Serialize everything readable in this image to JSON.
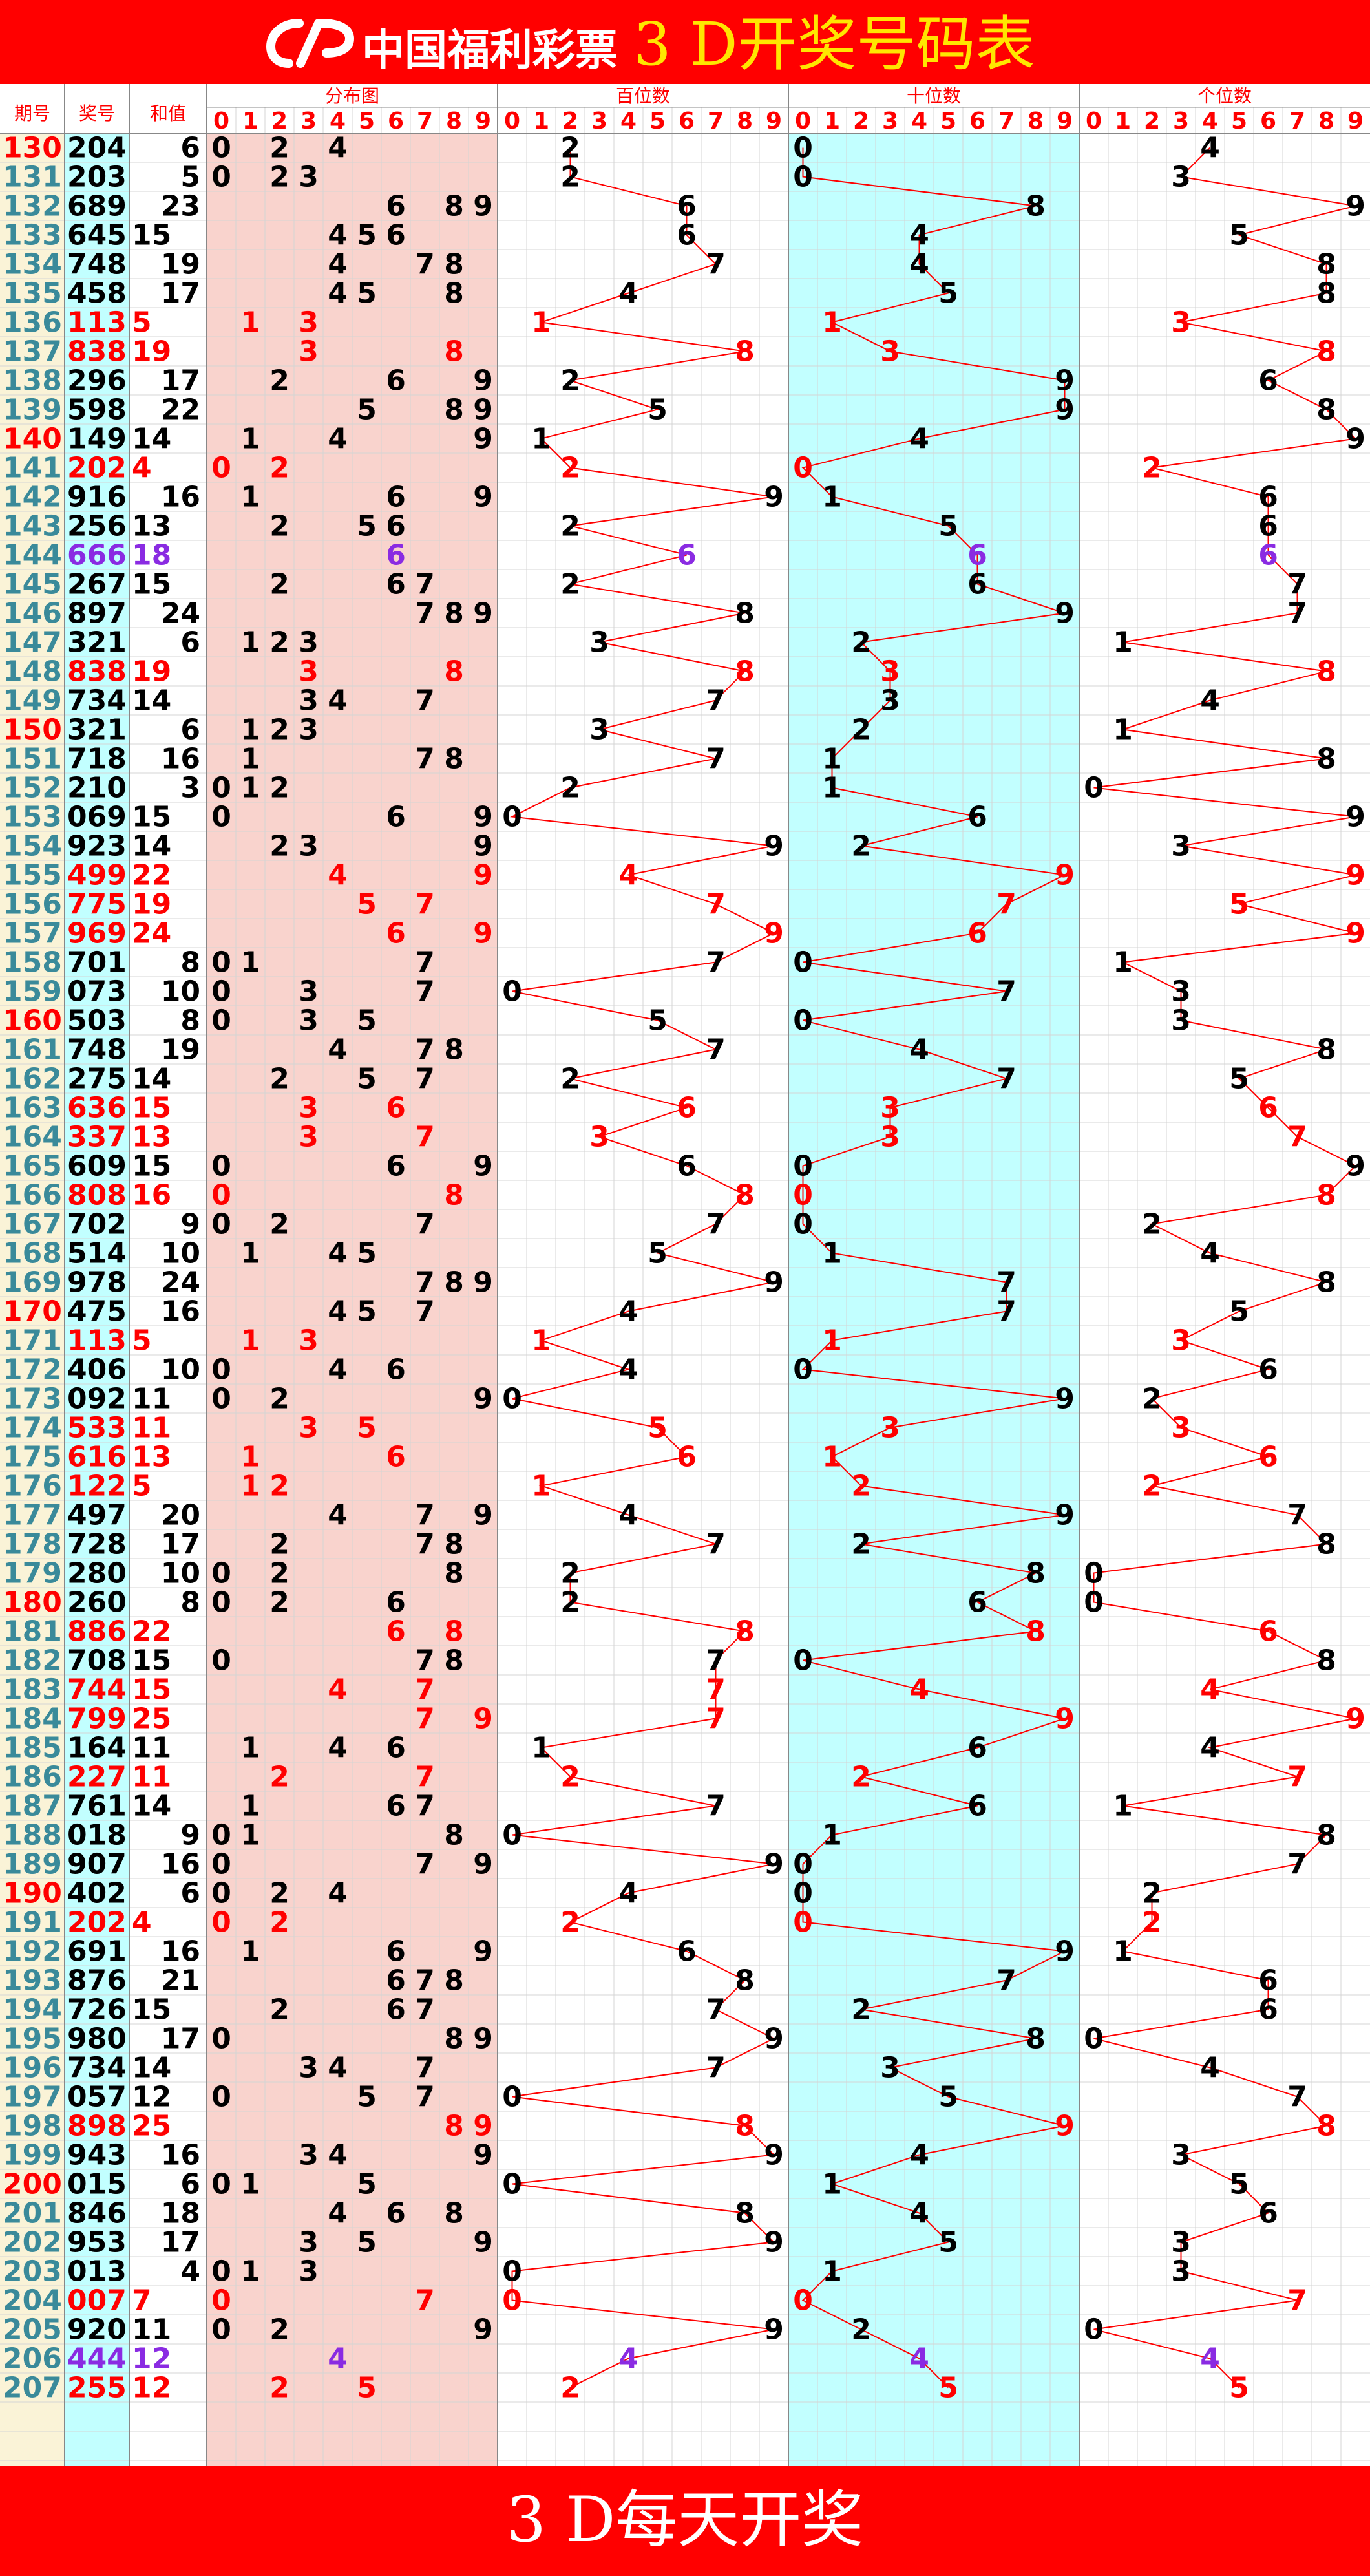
{
  "header": {
    "brand": "中国福利彩票",
    "title": "3 D开奖号码表"
  },
  "footer": {
    "text": "3 D每天开奖"
  },
  "colors": {
    "header_bg": "#ff0000",
    "title": "#ffe600",
    "issue_col_bg": "#faf3d7",
    "number_col_bg": "#c2ffff",
    "dist_bg": "#f9d3cd",
    "tens_bg": "#c2ffff",
    "red": "#ff0000",
    "purple": "#8a2be2",
    "grid": "#d4d4d4"
  },
  "chart_data": {
    "type": "table",
    "columns": {
      "issue": "期号",
      "number": "奖号",
      "sum": "和值",
      "dist": "分布图",
      "hundreds": "百位数",
      "tens": "十位数",
      "units": "个位数"
    },
    "digits": [
      "0",
      "1",
      "2",
      "3",
      "4",
      "5",
      "6",
      "7",
      "8",
      "9"
    ],
    "draws": [
      {
        "issue": "130",
        "number": "204",
        "sum": 6
      },
      {
        "issue": "131",
        "number": "203",
        "sum": 5
      },
      {
        "issue": "132",
        "number": "689",
        "sum": 23
      },
      {
        "issue": "133",
        "number": "645",
        "sum": 15
      },
      {
        "issue": "134",
        "number": "748",
        "sum": 19
      },
      {
        "issue": "135",
        "number": "458",
        "sum": 17
      },
      {
        "issue": "136",
        "number": "113",
        "sum": 5
      },
      {
        "issue": "137",
        "number": "838",
        "sum": 19
      },
      {
        "issue": "138",
        "number": "296",
        "sum": 17
      },
      {
        "issue": "139",
        "number": "598",
        "sum": 22
      },
      {
        "issue": "140",
        "number": "149",
        "sum": 14
      },
      {
        "issue": "141",
        "number": "202",
        "sum": 4
      },
      {
        "issue": "142",
        "number": "916",
        "sum": 16
      },
      {
        "issue": "143",
        "number": "256",
        "sum": 13
      },
      {
        "issue": "144",
        "number": "666",
        "sum": 18
      },
      {
        "issue": "145",
        "number": "267",
        "sum": 15
      },
      {
        "issue": "146",
        "number": "897",
        "sum": 24
      },
      {
        "issue": "147",
        "number": "321",
        "sum": 6
      },
      {
        "issue": "148",
        "number": "838",
        "sum": 19
      },
      {
        "issue": "149",
        "number": "734",
        "sum": 14
      },
      {
        "issue": "150",
        "number": "321",
        "sum": 6
      },
      {
        "issue": "151",
        "number": "718",
        "sum": 16
      },
      {
        "issue": "152",
        "number": "210",
        "sum": 3
      },
      {
        "issue": "153",
        "number": "069",
        "sum": 15
      },
      {
        "issue": "154",
        "number": "923",
        "sum": 14
      },
      {
        "issue": "155",
        "number": "499",
        "sum": 22
      },
      {
        "issue": "156",
        "number": "775",
        "sum": 19
      },
      {
        "issue": "157",
        "number": "969",
        "sum": 24
      },
      {
        "issue": "158",
        "number": "701",
        "sum": 8
      },
      {
        "issue": "159",
        "number": "073",
        "sum": 10
      },
      {
        "issue": "160",
        "number": "503",
        "sum": 8
      },
      {
        "issue": "161",
        "number": "748",
        "sum": 19
      },
      {
        "issue": "162",
        "number": "275",
        "sum": 14
      },
      {
        "issue": "163",
        "number": "636",
        "sum": 15
      },
      {
        "issue": "164",
        "number": "337",
        "sum": 13
      },
      {
        "issue": "165",
        "number": "609",
        "sum": 15
      },
      {
        "issue": "166",
        "number": "808",
        "sum": 16
      },
      {
        "issue": "167",
        "number": "702",
        "sum": 9
      },
      {
        "issue": "168",
        "number": "514",
        "sum": 10
      },
      {
        "issue": "169",
        "number": "978",
        "sum": 24
      },
      {
        "issue": "170",
        "number": "475",
        "sum": 16
      },
      {
        "issue": "171",
        "number": "113",
        "sum": 5
      },
      {
        "issue": "172",
        "number": "406",
        "sum": 10
      },
      {
        "issue": "173",
        "number": "092",
        "sum": 11
      },
      {
        "issue": "174",
        "number": "533",
        "sum": 11
      },
      {
        "issue": "175",
        "number": "616",
        "sum": 13
      },
      {
        "issue": "176",
        "number": "122",
        "sum": 5
      },
      {
        "issue": "177",
        "number": "497",
        "sum": 20
      },
      {
        "issue": "178",
        "number": "728",
        "sum": 17
      },
      {
        "issue": "179",
        "number": "280",
        "sum": 10
      },
      {
        "issue": "180",
        "number": "260",
        "sum": 8
      },
      {
        "issue": "181",
        "number": "886",
        "sum": 22
      },
      {
        "issue": "182",
        "number": "708",
        "sum": 15
      },
      {
        "issue": "183",
        "number": "744",
        "sum": 15
      },
      {
        "issue": "184",
        "number": "799",
        "sum": 25
      },
      {
        "issue": "185",
        "number": "164",
        "sum": 11
      },
      {
        "issue": "186",
        "number": "227",
        "sum": 11
      },
      {
        "issue": "187",
        "number": "761",
        "sum": 14
      },
      {
        "issue": "188",
        "number": "018",
        "sum": 9
      },
      {
        "issue": "189",
        "number": "907",
        "sum": 16
      },
      {
        "issue": "190",
        "number": "402",
        "sum": 6
      },
      {
        "issue": "191",
        "number": "202",
        "sum": 4
      },
      {
        "issue": "192",
        "number": "691",
        "sum": 16
      },
      {
        "issue": "193",
        "number": "876",
        "sum": 21
      },
      {
        "issue": "194",
        "number": "726",
        "sum": 15
      },
      {
        "issue": "195",
        "number": "980",
        "sum": 17
      },
      {
        "issue": "196",
        "number": "734",
        "sum": 14
      },
      {
        "issue": "197",
        "number": "057",
        "sum": 12
      },
      {
        "issue": "198",
        "number": "898",
        "sum": 25
      },
      {
        "issue": "199",
        "number": "943",
        "sum": 16
      },
      {
        "issue": "200",
        "number": "015",
        "sum": 6
      },
      {
        "issue": "201",
        "number": "846",
        "sum": 18
      },
      {
        "issue": "202",
        "number": "953",
        "sum": 17
      },
      {
        "issue": "203",
        "number": "013",
        "sum": 4
      },
      {
        "issue": "204",
        "number": "007",
        "sum": 7
      },
      {
        "issue": "205",
        "number": "920",
        "sum": 11
      },
      {
        "issue": "206",
        "number": "444",
        "sum": 12
      },
      {
        "issue": "207",
        "number": "255",
        "sum": 12
      }
    ]
  }
}
